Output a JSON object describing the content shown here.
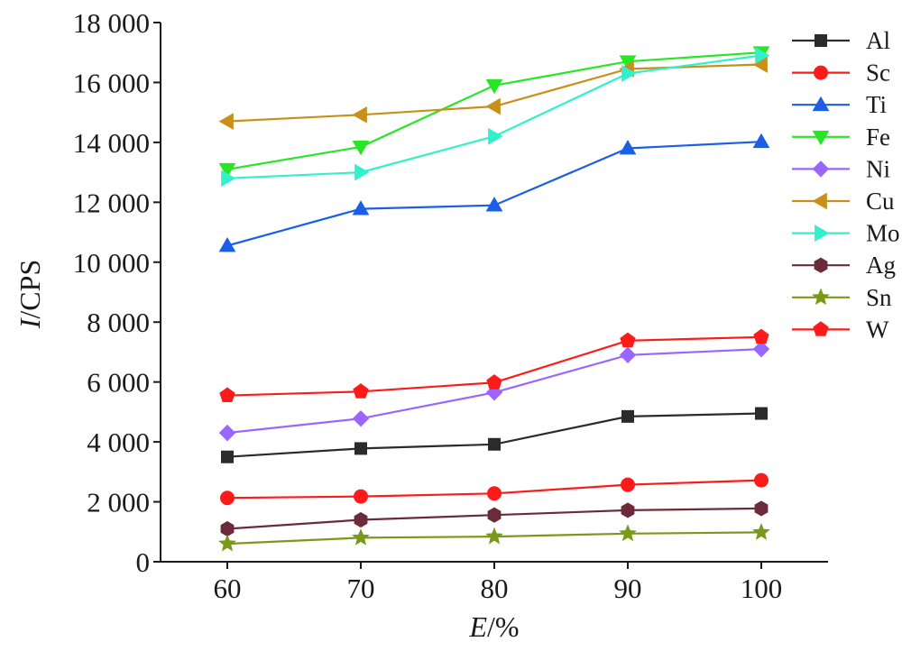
{
  "chart_data": {
    "type": "line",
    "xlabel_italic": "E",
    "xlabel_rest": "/%",
    "ylabel_italic": "I",
    "ylabel_rest": "/CPS",
    "x": [
      60,
      70,
      80,
      90,
      100
    ],
    "xlim": [
      55,
      105
    ],
    "ylim": [
      0,
      18000
    ],
    "yticks": [
      0,
      2000,
      4000,
      6000,
      8000,
      10000,
      12000,
      14000,
      16000,
      18000
    ],
    "ytick_labels": [
      "0",
      "2 000",
      "4 000",
      "6 000",
      "8 000",
      "10 000",
      "12 000",
      "14 000",
      "16 000",
      "18 000"
    ],
    "xtick_labels": [
      "60",
      "70",
      "80",
      "90",
      "100"
    ],
    "grid": false,
    "legend_position": "right",
    "series": [
      {
        "name": "Al",
        "color": "#2b2b2b",
        "marker": "square",
        "values": [
          3500,
          3780,
          3920,
          4850,
          4950
        ]
      },
      {
        "name": "Sc",
        "color": "#ff1a1a",
        "marker": "circle",
        "values": [
          2130,
          2180,
          2280,
          2570,
          2720
        ]
      },
      {
        "name": "Ti",
        "color": "#1a5fe6",
        "marker": "triangle-up",
        "values": [
          10550,
          11780,
          11900,
          13800,
          14020
        ]
      },
      {
        "name": "Fe",
        "color": "#26e626",
        "marker": "triangle-down",
        "values": [
          13100,
          13850,
          15900,
          16700,
          17000
        ]
      },
      {
        "name": "Ni",
        "color": "#9966ff",
        "marker": "diamond",
        "values": [
          4300,
          4780,
          5650,
          6900,
          7100
        ]
      },
      {
        "name": "Cu",
        "color": "#c8901a",
        "marker": "triangle-left",
        "values": [
          14700,
          14920,
          15200,
          16450,
          16600
        ]
      },
      {
        "name": "Mo",
        "color": "#33f0cc",
        "marker": "triangle-right",
        "values": [
          12800,
          13000,
          14200,
          16300,
          16900
        ]
      },
      {
        "name": "Ag",
        "color": "#6b2b3a",
        "marker": "hexagon",
        "values": [
          1100,
          1400,
          1560,
          1720,
          1780
        ]
      },
      {
        "name": "Sn",
        "color": "#7a991a",
        "marker": "star",
        "values": [
          600,
          800,
          840,
          940,
          980
        ]
      },
      {
        "name": "W",
        "color": "#ff1a1a",
        "marker": "pentagon",
        "values": [
          5550,
          5680,
          5980,
          7380,
          7500
        ]
      }
    ]
  }
}
